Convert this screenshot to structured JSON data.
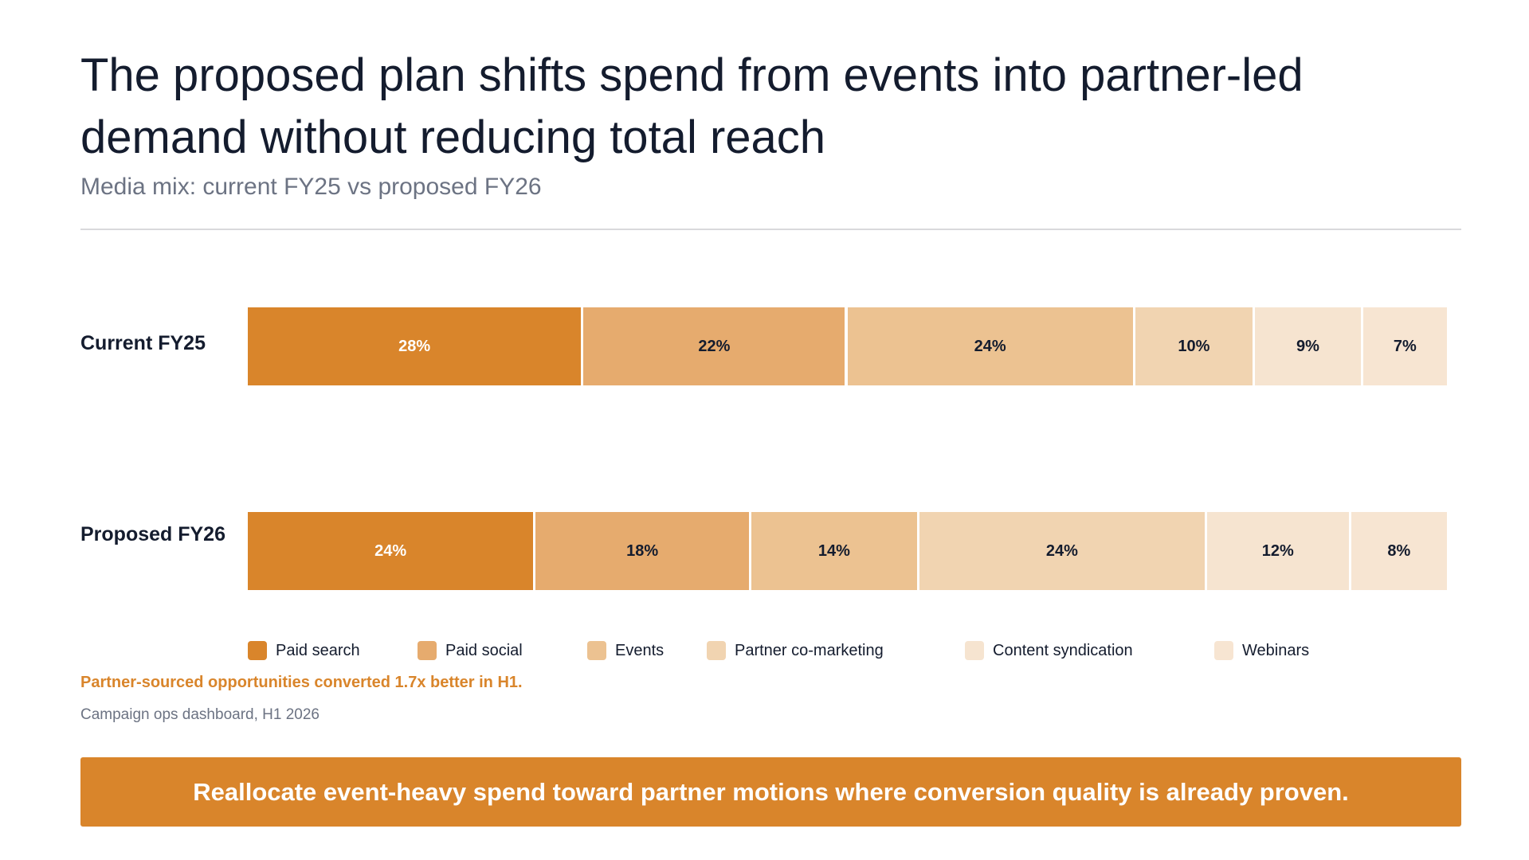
{
  "header": {
    "title": "The proposed plan shifts spend from events into partner-led demand without reducing total reach",
    "subtitle": "Media mix: current FY25 vs proposed FY26"
  },
  "chart_data": {
    "type": "bar",
    "orientation": "horizontal",
    "stacked": true,
    "normalized": true,
    "unit": "%",
    "categories": [
      "Current FY25",
      "Proposed FY26"
    ],
    "series": [
      {
        "name": "Paid search",
        "color": "#d9852b",
        "values": [
          28,
          24
        ],
        "labels": [
          "28%",
          "24%"
        ]
      },
      {
        "name": "Paid social",
        "color": "#e6ab6e",
        "values": [
          22,
          18
        ],
        "labels": [
          "22%",
          "18%"
        ]
      },
      {
        "name": "Events",
        "color": "#ecc291",
        "values": [
          24,
          14
        ],
        "labels": [
          "24%",
          "14%"
        ]
      },
      {
        "name": "Partner co-marketing",
        "color": "#f1d4b1",
        "values": [
          10,
          24
        ],
        "labels": [
          "10%",
          "24%"
        ]
      },
      {
        "name": "Content syndication",
        "color": "#f6e4d0",
        "values": [
          9,
          12
        ],
        "labels": [
          "9%",
          "12%"
        ]
      },
      {
        "name": "Webinars",
        "color": "#f7e5d2",
        "values": [
          7,
          8
        ],
        "labels": [
          "7%",
          "8%"
        ]
      }
    ],
    "legend_position": "bottom",
    "grid": false
  },
  "note": "Partner-sourced opportunities converted 1.7x better in H1.",
  "source": "Campaign ops dashboard, H1 2026",
  "takeaway": "Reallocate event-heavy spend toward partner motions where conversion quality is already proven.",
  "colors": {
    "accent": "#d9852b",
    "title": "#141c2e",
    "muted": "#6c7383"
  }
}
